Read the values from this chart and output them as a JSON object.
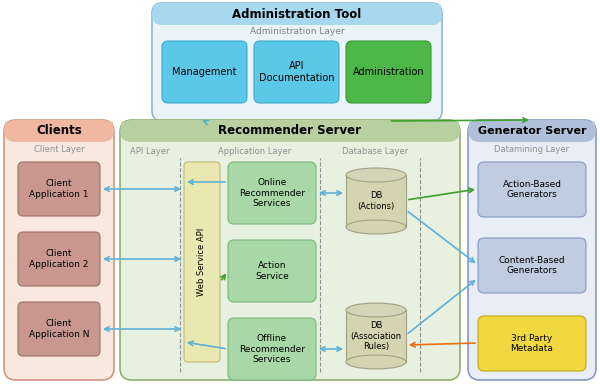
{
  "bg_color": "#ffffff",
  "admin_tool": {
    "title": "Administration Tool",
    "subtitle": "Administration Layer",
    "fill_top": "#a8d8f0",
    "fill_bot": "#e8f4f8",
    "edge": "#90b8d0",
    "children": [
      {
        "label": "Management",
        "fill": "#5bc8e8",
        "edge": "#40a8c8"
      },
      {
        "label": "API\nDocumentation",
        "fill": "#5bc8e8",
        "edge": "#40a8c8"
      },
      {
        "label": "Administration",
        "fill": "#4db848",
        "edge": "#389830"
      }
    ]
  },
  "clients": {
    "title": "Clients",
    "subtitle": "Client Layer",
    "fill": "#f8e8e0",
    "fill_top": "#f0b8a0",
    "edge": "#d09880",
    "children": [
      {
        "label": "Client\nApplication 1"
      },
      {
        "label": "Client\nApplication 2"
      },
      {
        "label": "Client\nApplication N"
      }
    ],
    "child_fill": "#c89890",
    "child_edge": "#a07060"
  },
  "recommender": {
    "title": "Recommender Server",
    "fill": "#e8f0e0",
    "fill_top": "#b8d0a0",
    "edge": "#90b070",
    "api_bar_fill": "#e8e8b0",
    "api_bar_edge": "#c0b870",
    "api_label": "Web Service API",
    "app_children": [
      {
        "label": "Online\nRecommender\nServices",
        "fill": "#a8d8a8",
        "edge": "#78b878"
      },
      {
        "label": "Action\nService",
        "fill": "#a8d8a8",
        "edge": "#78b878"
      },
      {
        "label": "Offline\nRecommender\nServices",
        "fill": "#a8d8a8",
        "edge": "#78b878"
      }
    ]
  },
  "generator": {
    "title": "Generator Server",
    "subtitle": "Datamining Layer",
    "fill": "#e8eef8",
    "fill_top": "#b0c0d8",
    "edge": "#8898c0",
    "children": [
      {
        "label": "Action-Based\nGenerators",
        "fill": "#c0cce0",
        "edge": "#8898c0"
      },
      {
        "label": "Content-Based\nGenerators",
        "fill": "#c0cce0",
        "edge": "#8898c0"
      },
      {
        "label": "3rd Party\nMetadata",
        "fill": "#f0d840",
        "edge": "#c0a810"
      }
    ]
  },
  "arrow_blue": "#60b0d8",
  "arrow_green": "#40a030",
  "arrow_orange": "#e87010",
  "arrow_cyan": "#40b8d8"
}
